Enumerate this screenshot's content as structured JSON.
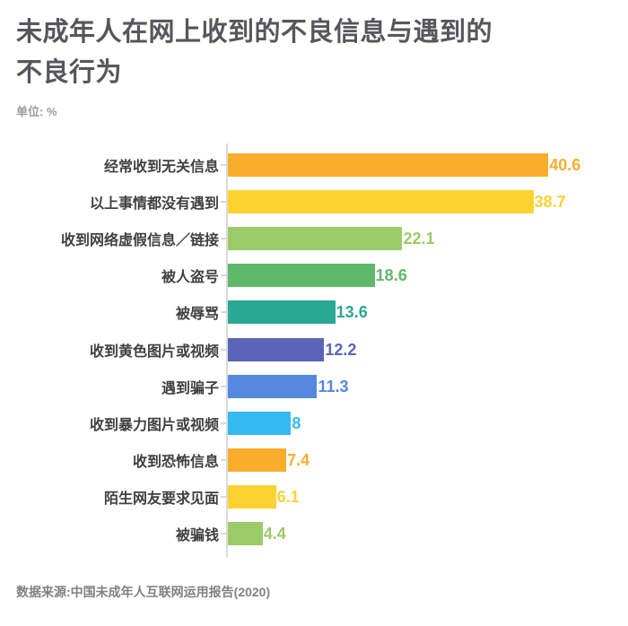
{
  "header": {
    "title_lines": [
      "未成年人在网上收到的不良信息与遇到的",
      "不良行为"
    ],
    "unit_label": "单位: %"
  },
  "footer": {
    "source": "数据来源:中国未成年人互联网运用报告(2020)"
  },
  "chart_data": {
    "type": "bar",
    "orientation": "horizontal",
    "title": "未成年人在网上收到的不良信息与遇到的不良行为",
    "xlabel": "",
    "ylabel": "",
    "unit": "%",
    "xlim": [
      0,
      50
    ],
    "grid": false,
    "legend": false,
    "value_labels_shown": true,
    "categories": [
      "经常收到无关信息",
      "以上事情都没有遇到",
      "收到网络虚假信息／链接",
      "被人盗号",
      "被辱骂",
      "收到黄色图片或视频",
      "遇到骗子",
      "收到暴力图片或视频",
      "收到恐怖信息",
      "陌生网友要求见面",
      "被骗钱"
    ],
    "values": [
      40.6,
      38.7,
      22.1,
      18.6,
      13.6,
      12.2,
      11.3,
      8,
      7.4,
      6.1,
      4.4
    ],
    "value_labels": [
      "40.6",
      "38.7",
      "22.1",
      "18.6",
      "13.6",
      "12.2",
      "11.3",
      "8",
      "7.4",
      "6.1",
      "4.4"
    ],
    "bar_colors": [
      "#FAAD2B",
      "#FCD230",
      "#9BCB68",
      "#5FB96B",
      "#2AA795",
      "#5A64B8",
      "#5589DF",
      "#33BAF2",
      "#FAAD2B",
      "#FCD230",
      "#9BCB68"
    ],
    "axis_color": "#D9DADB"
  }
}
